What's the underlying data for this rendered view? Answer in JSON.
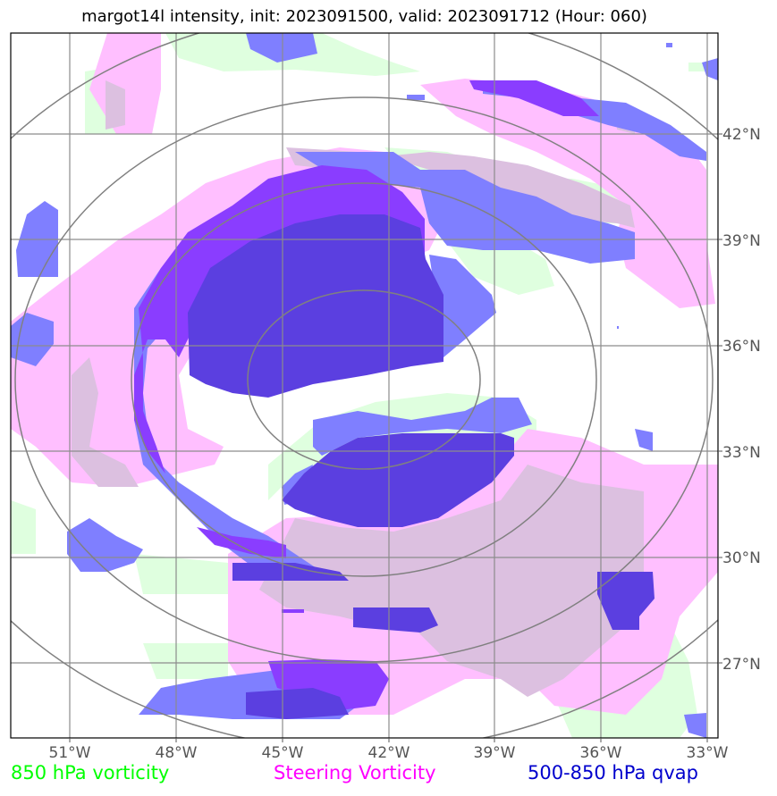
{
  "title": "margot14l intensity, init: 2023091500, valid: 2023091712 (Hour: 060)",
  "map": {
    "lon_labels": [
      "51°W",
      "48°W",
      "45°W",
      "42°W",
      "39°W",
      "36°W",
      "33°W"
    ],
    "lat_labels": [
      "42°N",
      "39°N",
      "36°N",
      "33°N",
      "30°N",
      "27°N"
    ],
    "gridline_color": "#8c8c8c",
    "range_ring_color": "#808080"
  },
  "legend": [
    {
      "label": "850 hPa vorticity",
      "color": "#00ff00"
    },
    {
      "label": "Steering Vorticity",
      "color": "#ff00ff"
    },
    {
      "label": "500-850 hPa qvap",
      "color": "#0000cd"
    }
  ],
  "layer_colors": {
    "vorticity_850": "#dfffdf",
    "steering_vorticity": "#ffbfff",
    "qvap_low": "#7f7fff",
    "qvap_mid": "#8a3dff",
    "qvap_high": "#5b3fe0",
    "overlap": "#dcc0e0"
  }
}
